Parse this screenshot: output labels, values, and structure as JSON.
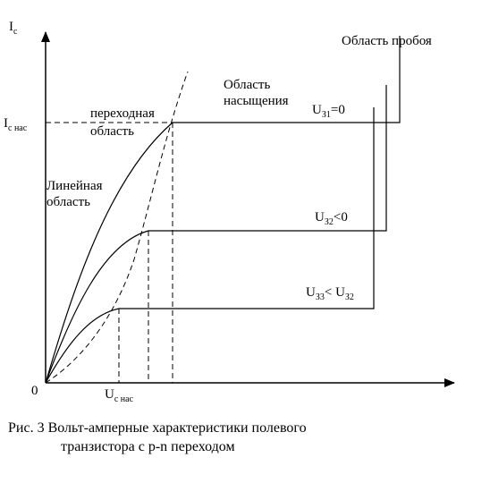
{
  "axes": {
    "y_axis_label": "I",
    "y_axis_sub": "c",
    "x_axis_origin": "0",
    "y_tick_label": "I",
    "y_tick_sub": "c нас",
    "x_tick_label": "U",
    "x_tick_sub": "c нас"
  },
  "regions": {
    "transition_line1": "переходная",
    "transition_line2": "область",
    "linear_line1": "Линейная",
    "linear_line2": "область",
    "saturation_line1": "Область",
    "saturation_line2": "насыщения",
    "breakdown": "Область пробоя"
  },
  "curves": [
    {
      "main": "U",
      "sub": "З1",
      "tail": "=0"
    },
    {
      "main": "U",
      "sub": "З2",
      "tail": "<0"
    },
    {
      "main": "U",
      "sub": "З3",
      "tail": "< U",
      "sub2": "З2"
    }
  ],
  "caption": {
    "line1": "Рис. 3 Вольт-амперные характеристики полевого",
    "line2": "транзистора с p-n переходом"
  }
}
